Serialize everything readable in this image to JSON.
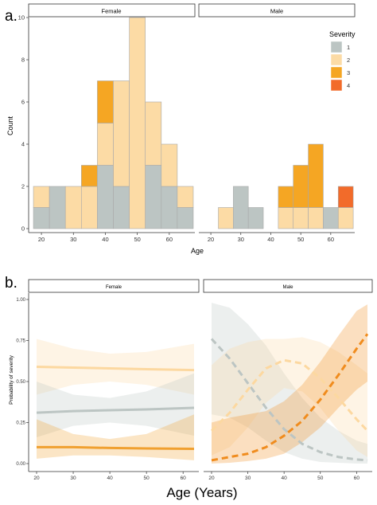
{
  "panel_a": {
    "label": "a.",
    "facets": [
      "Female",
      "Male"
    ],
    "xlabel": "Age",
    "ylabel": "Count",
    "legend_title": "Severity"
  },
  "panel_b": {
    "label": "b.",
    "facets": [
      "Female",
      "Male"
    ],
    "xlabel": "Age (Years)",
    "ylabel": "Probability of severity"
  },
  "chart_data": [
    {
      "type": "bar",
      "subtype": "stacked-histogram",
      "title": "",
      "xlabel": "Age",
      "ylabel": "Count",
      "xlim": [
        16,
        68
      ],
      "ylim": [
        0,
        10
      ],
      "xticks": [
        20,
        30,
        40,
        50,
        60
      ],
      "yticks": [
        0,
        2,
        4,
        6,
        8,
        10
      ],
      "bin_width": 5,
      "legend": {
        "title": "Severity",
        "position": "top-right",
        "entries": [
          "1",
          "2",
          "3",
          "4"
        ]
      },
      "colors": {
        "1": "#bcc5c3",
        "2": "#fcdba5",
        "3": "#f5a623",
        "4": "#f26b2a"
      },
      "facets": [
        {
          "name": "Female",
          "bins": [
            {
              "x": 20,
              "counts": {
                "1": 1,
                "2": 1,
                "3": 0,
                "4": 0
              }
            },
            {
              "x": 25,
              "counts": {
                "1": 2,
                "2": 0,
                "3": 0,
                "4": 0
              }
            },
            {
              "x": 30,
              "counts": {
                "1": 0,
                "2": 2,
                "3": 0,
                "4": 0
              }
            },
            {
              "x": 35,
              "counts": {
                "1": 0,
                "2": 2,
                "3": 1,
                "4": 0
              }
            },
            {
              "x": 40,
              "counts": {
                "1": 3,
                "2": 2,
                "3": 2,
                "4": 0
              }
            },
            {
              "x": 45,
              "counts": {
                "1": 2,
                "2": 5,
                "3": 0,
                "4": 0
              }
            },
            {
              "x": 50,
              "counts": {
                "1": 0,
                "2": 10,
                "3": 0,
                "4": 0
              }
            },
            {
              "x": 55,
              "counts": {
                "1": 3,
                "2": 3,
                "3": 0,
                "4": 0
              }
            },
            {
              "x": 60,
              "counts": {
                "1": 2,
                "2": 2,
                "3": 0,
                "4": 0
              }
            },
            {
              "x": 65,
              "counts": {
                "1": 1,
                "2": 1,
                "3": 0,
                "4": 0
              }
            }
          ]
        },
        {
          "name": "Male",
          "bins": [
            {
              "x": 20,
              "counts": {
                "1": 0,
                "2": 0,
                "3": 0,
                "4": 0
              }
            },
            {
              "x": 25,
              "counts": {
                "1": 0,
                "2": 1,
                "3": 0,
                "4": 0
              }
            },
            {
              "x": 30,
              "counts": {
                "1": 2,
                "2": 0,
                "3": 0,
                "4": 0
              }
            },
            {
              "x": 35,
              "counts": {
                "1": 1,
                "2": 0,
                "3": 0,
                "4": 0
              }
            },
            {
              "x": 40,
              "counts": {
                "1": 0,
                "2": 0,
                "3": 0,
                "4": 0
              }
            },
            {
              "x": 45,
              "counts": {
                "1": 0,
                "2": 1,
                "3": 1,
                "4": 0
              }
            },
            {
              "x": 50,
              "counts": {
                "1": 0,
                "2": 1,
                "3": 2,
                "4": 0
              }
            },
            {
              "x": 55,
              "counts": {
                "1": 0,
                "2": 1,
                "3": 3,
                "4": 0
              }
            },
            {
              "x": 60,
              "counts": {
                "1": 1,
                "2": 0,
                "3": 0,
                "4": 0
              }
            },
            {
              "x": 65,
              "counts": {
                "1": 0,
                "2": 1,
                "3": 0,
                "4": 1
              }
            }
          ]
        }
      ]
    },
    {
      "type": "line",
      "subtype": "predicted-probability-with-ci",
      "title": "",
      "xlabel": "Age (Years)",
      "ylabel": "Probability of severity",
      "xlim": [
        18,
        65
      ],
      "ylim": [
        0,
        1
      ],
      "xticks": [
        20,
        30,
        40,
        50,
        60
      ],
      "yticks": [
        "0.00",
        "0.25",
        "0.50",
        "0.75",
        "1.00"
      ],
      "facets": [
        {
          "name": "Female",
          "linestyle": "solid",
          "series": [
            {
              "color": "#fcd8a0",
              "x": [
                20,
                30,
                40,
                50,
                63
              ],
              "y": [
                0.59,
                0.585,
                0.58,
                0.575,
                0.57
              ],
              "lower": [
                0.42,
                0.48,
                0.5,
                0.48,
                0.42
              ],
              "upper": [
                0.76,
                0.7,
                0.67,
                0.68,
                0.73
              ]
            },
            {
              "color": "#bcc5c3",
              "x": [
                20,
                30,
                40,
                50,
                63
              ],
              "y": [
                0.31,
                0.32,
                0.325,
                0.33,
                0.34
              ],
              "lower": [
                0.16,
                0.23,
                0.25,
                0.23,
                0.17
              ],
              "upper": [
                0.5,
                0.42,
                0.4,
                0.44,
                0.55
              ]
            },
            {
              "color": "#f0a030",
              "x": [
                20,
                30,
                40,
                50,
                63
              ],
              "y": [
                0.1,
                0.1,
                0.095,
                0.092,
                0.09
              ],
              "lower": [
                0.03,
                0.05,
                0.05,
                0.04,
                0.02
              ],
              "upper": [
                0.27,
                0.18,
                0.15,
                0.18,
                0.3
              ]
            }
          ]
        },
        {
          "name": "Male",
          "linestyle": "dashed",
          "series": [
            {
              "color": "#bcc5c3",
              "x": [
                20,
                25,
                30,
                35,
                40,
                45,
                50,
                55,
                60,
                63
              ],
              "y": [
                0.76,
                0.64,
                0.49,
                0.34,
                0.21,
                0.12,
                0.07,
                0.04,
                0.025,
                0.02
              ],
              "lower": [
                0.3,
                0.28,
                0.22,
                0.14,
                0.07,
                0.03,
                0.01,
                0.005,
                0.0,
                0.0
              ],
              "upper": [
                0.98,
                0.95,
                0.85,
                0.72,
                0.55,
                0.4,
                0.28,
                0.2,
                0.14,
                0.12
              ]
            },
            {
              "color": "#fcd8a0",
              "x": [
                20,
                25,
                30,
                35,
                40,
                45,
                50,
                55,
                60,
                63
              ],
              "y": [
                0.2,
                0.31,
                0.45,
                0.58,
                0.63,
                0.61,
                0.52,
                0.4,
                0.27,
                0.2
              ],
              "lower": [
                0.05,
                0.1,
                0.22,
                0.37,
                0.46,
                0.44,
                0.34,
                0.2,
                0.08,
                0.04
              ],
              "upper": [
                0.6,
                0.7,
                0.74,
                0.76,
                0.76,
                0.77,
                0.74,
                0.68,
                0.6,
                0.55
              ]
            },
            {
              "color": "#f08c1e",
              "x": [
                20,
                25,
                30,
                35,
                40,
                45,
                50,
                55,
                60,
                63
              ],
              "y": [
                0.02,
                0.04,
                0.06,
                0.1,
                0.17,
                0.26,
                0.39,
                0.54,
                0.7,
                0.79
              ],
              "lower": [
                0.0,
                0.005,
                0.015,
                0.03,
                0.06,
                0.13,
                0.22,
                0.34,
                0.45,
                0.5
              ],
              "upper": [
                0.25,
                0.28,
                0.3,
                0.32,
                0.38,
                0.48,
                0.62,
                0.78,
                0.93,
                0.97
              ]
            }
          ]
        }
      ]
    }
  ]
}
